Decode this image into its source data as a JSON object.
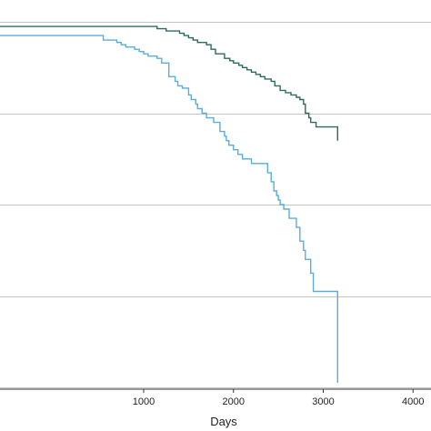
{
  "chart_data": {
    "type": "line",
    "step": true,
    "title": "",
    "xlabel": "Days",
    "ylabel": "",
    "xlim": [
      -600,
      4200
    ],
    "ylim": [
      0.2,
      1.02
    ],
    "x_ticks": [
      1000,
      2000,
      3000,
      4000
    ],
    "x_tick_labels": [
      "1000",
      "2000",
      "3000",
      "4000"
    ],
    "y_gridlines": [
      0.2,
      0.4,
      0.6,
      0.8,
      1.0
    ],
    "grid": "horizontal",
    "series": [
      {
        "color": "#2e6b5e",
        "x": [
          -600,
          1150,
          1250,
          1400,
          1450,
          1500,
          1550,
          1600,
          1700,
          1750,
          1800,
          1900,
          1960,
          2000,
          2060,
          2100,
          2150,
          2200,
          2250,
          2300,
          2350,
          2420,
          2460,
          2520,
          2580,
          2640,
          2700,
          2740,
          2780,
          2800,
          2840,
          2860,
          2920,
          3160,
          3160
        ],
        "y": [
          0.99,
          0.985,
          0.98,
          0.975,
          0.97,
          0.965,
          0.96,
          0.955,
          0.95,
          0.94,
          0.93,
          0.92,
          0.915,
          0.91,
          0.905,
          0.9,
          0.895,
          0.89,
          0.885,
          0.88,
          0.875,
          0.87,
          0.86,
          0.85,
          0.845,
          0.84,
          0.835,
          0.83,
          0.82,
          0.8,
          0.79,
          0.78,
          0.77,
          0.77,
          0.74
        ]
      },
      {
        "color": "#5aaedc",
        "x": [
          -600,
          550,
          700,
          750,
          800,
          900,
          950,
          1000,
          1050,
          1150,
          1200,
          1280,
          1350,
          1380,
          1430,
          1500,
          1530,
          1580,
          1600,
          1650,
          1700,
          1780,
          1850,
          1900,
          1920,
          1950,
          2000,
          2050,
          2100,
          2200,
          2380,
          2420,
          2450,
          2480,
          2500,
          2520,
          2560,
          2620,
          2700,
          2740,
          2780,
          2800,
          2860,
          2890,
          3160,
          3160
        ],
        "y": [
          0.97,
          0.96,
          0.955,
          0.95,
          0.945,
          0.94,
          0.935,
          0.93,
          0.925,
          0.92,
          0.91,
          0.88,
          0.87,
          0.86,
          0.855,
          0.84,
          0.83,
          0.82,
          0.81,
          0.8,
          0.79,
          0.78,
          0.76,
          0.75,
          0.74,
          0.73,
          0.72,
          0.71,
          0.7,
          0.69,
          0.67,
          0.65,
          0.63,
          0.62,
          0.61,
          0.6,
          0.59,
          0.57,
          0.55,
          0.52,
          0.5,
          0.48,
          0.45,
          0.41,
          0.31,
          0.21
        ]
      }
    ]
  }
}
